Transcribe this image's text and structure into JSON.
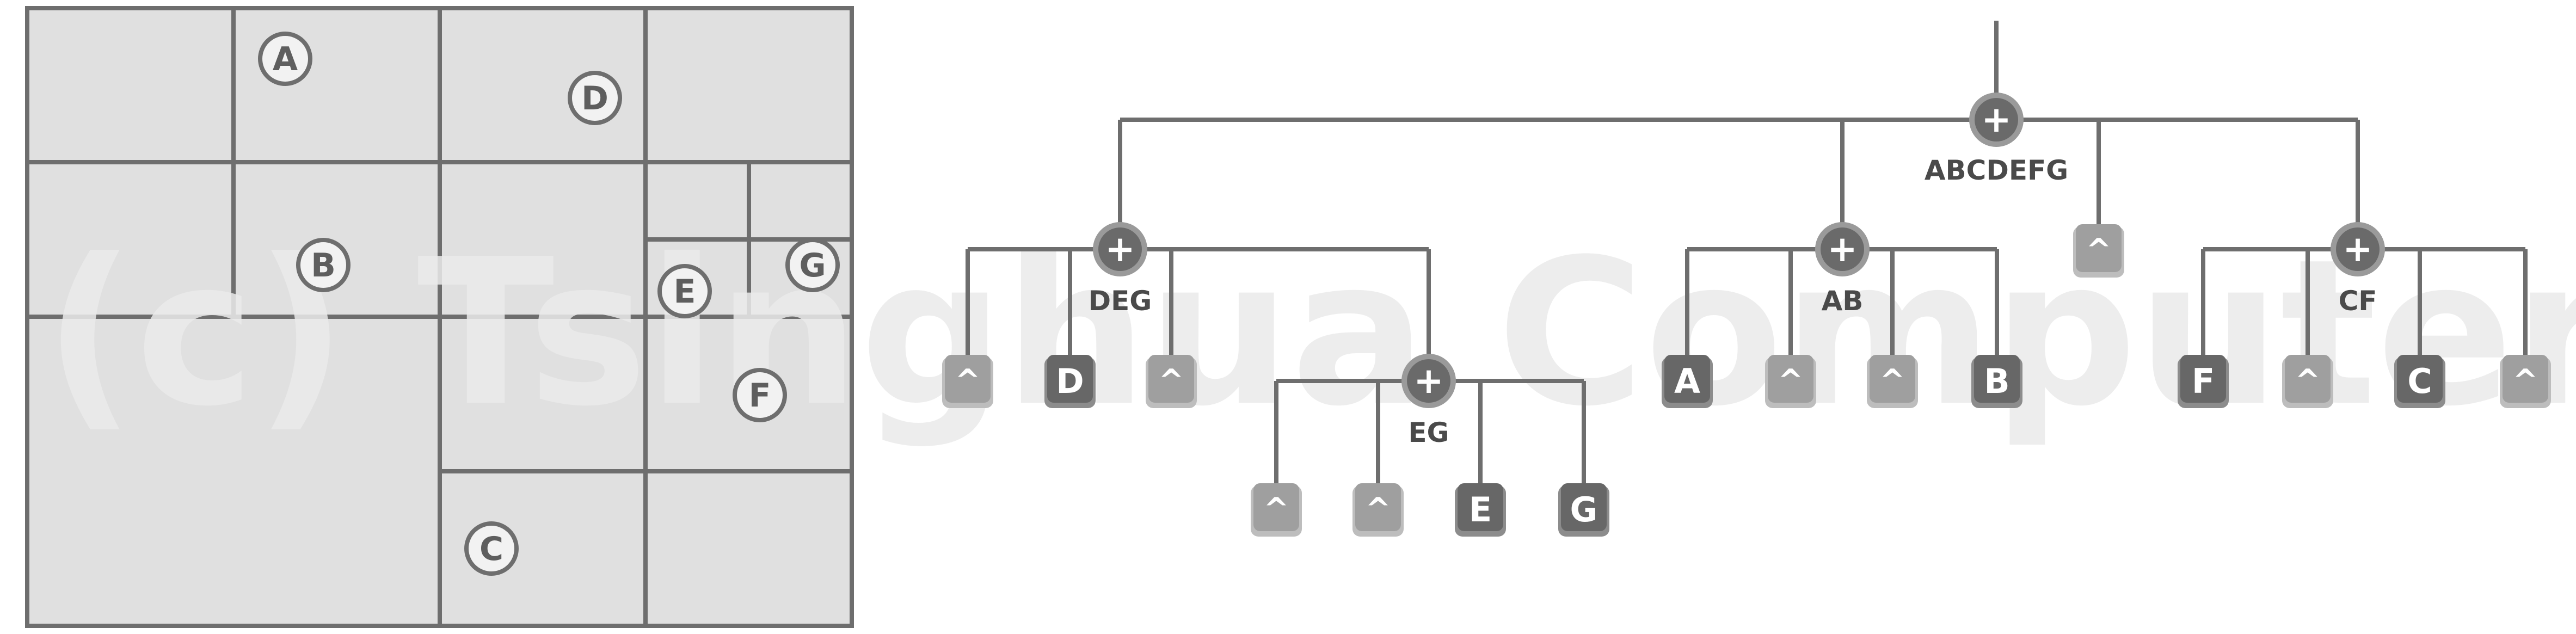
{
  "watermark": "(c) Tsinghua Computer",
  "colors": {
    "background": "#ffffff",
    "region_fill": "#e0e0e0",
    "line": "#6e6e6e",
    "node_fill": "#6a6a6a",
    "leaf_dark": "#676767",
    "leaf_empty": "#9f9f9f",
    "watermark": "#ebebeb"
  },
  "map": {
    "regions": [
      {
        "id": "A",
        "label": "A"
      },
      {
        "id": "B",
        "label": "B"
      },
      {
        "id": "C",
        "label": "C"
      },
      {
        "id": "D",
        "label": "D"
      },
      {
        "id": "E",
        "label": "E"
      },
      {
        "id": "F",
        "label": "F"
      },
      {
        "id": "G",
        "label": "G"
      }
    ]
  },
  "tree": {
    "internal_symbol": "+",
    "empty_symbol": "^",
    "nodes": [
      {
        "id": "root",
        "label": "ABCDEFG"
      },
      {
        "id": "deg",
        "label": "DEG"
      },
      {
        "id": "ab",
        "label": "AB"
      },
      {
        "id": "cf",
        "label": "CF"
      },
      {
        "id": "eg",
        "label": "EG"
      }
    ],
    "leaves": [
      {
        "id": "deg-1",
        "label": "^",
        "kind": "empty"
      },
      {
        "id": "deg-2",
        "label": "D",
        "kind": "object"
      },
      {
        "id": "deg-3",
        "label": "^",
        "kind": "empty"
      },
      {
        "id": "eg-1",
        "label": "^",
        "kind": "empty"
      },
      {
        "id": "eg-2",
        "label": "^",
        "kind": "empty"
      },
      {
        "id": "eg-3",
        "label": "E",
        "kind": "object"
      },
      {
        "id": "eg-4",
        "label": "G",
        "kind": "object"
      },
      {
        "id": "ab-1",
        "label": "A",
        "kind": "object"
      },
      {
        "id": "ab-2",
        "label": "^",
        "kind": "empty"
      },
      {
        "id": "ab-3",
        "label": "^",
        "kind": "empty"
      },
      {
        "id": "ab-4",
        "label": "B",
        "kind": "object"
      },
      {
        "id": "root-3",
        "label": "^",
        "kind": "empty"
      },
      {
        "id": "cf-1",
        "label": "F",
        "kind": "object"
      },
      {
        "id": "cf-2",
        "label": "^",
        "kind": "empty"
      },
      {
        "id": "cf-3",
        "label": "C",
        "kind": "object"
      },
      {
        "id": "cf-4",
        "label": "^",
        "kind": "empty"
      }
    ]
  }
}
